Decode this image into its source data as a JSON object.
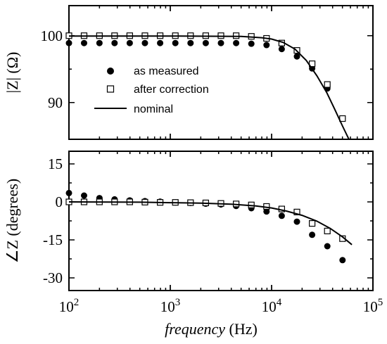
{
  "chart_data": [
    {
      "type": "scatter",
      "panel": "magnitude",
      "ylabel": "|Z| (Ω)",
      "xlabel": "",
      "xscale": "log",
      "xlim": [
        100,
        100000
      ],
      "ylim": [
        84.5,
        104.5
      ],
      "yticks": [
        90,
        100
      ],
      "ytick_labels": [
        "90",
        "100"
      ],
      "grid": false,
      "legend_position": "center-left",
      "series": [
        {
          "name": "as measured",
          "marker": "filled-circle",
          "x": [
            100,
            141,
            200,
            282,
            398,
            562,
            794,
            1122,
            1585,
            2239,
            3162,
            4467,
            6310,
            8913,
            12589,
            17783,
            25119,
            35481,
            50119
          ],
          "y": [
            98.9,
            98.9,
            98.9,
            98.9,
            98.9,
            98.9,
            98.9,
            98.9,
            98.9,
            98.9,
            98.9,
            98.9,
            98.8,
            98.6,
            98.0,
            96.9,
            95.1,
            92.1,
            87.6
          ]
        },
        {
          "name": "after correction",
          "marker": "open-square",
          "x": [
            100,
            141,
            200,
            282,
            398,
            562,
            794,
            1122,
            1585,
            2239,
            3162,
            4467,
            6310,
            8913,
            12589,
            17783,
            25119,
            35481,
            50119
          ],
          "y": [
            100.0,
            100.0,
            100.0,
            100.0,
            100.0,
            100.0,
            100.0,
            100.0,
            100.0,
            100.0,
            100.0,
            100.0,
            99.9,
            99.6,
            98.9,
            97.8,
            95.8,
            92.7,
            87.6
          ]
        },
        {
          "name": "nominal",
          "marker": "line",
          "x": [
            100,
            1000,
            5000,
            8000,
            10000,
            13000,
            17000,
            22000,
            28000,
            35000,
            42000,
            50000,
            58000
          ],
          "y": [
            99.95,
            99.95,
            99.9,
            99.7,
            99.5,
            99.0,
            98.0,
            96.3,
            94.0,
            91.5,
            89.0,
            86.5,
            84.5
          ]
        }
      ]
    },
    {
      "type": "scatter",
      "panel": "phase",
      "ylabel": "∠Z (degrees)",
      "xlabel": "frequency (Hz)",
      "xscale": "log",
      "xlim": [
        100,
        100000
      ],
      "ylim": [
        -35,
        20
      ],
      "yticks": [
        -30,
        -15,
        0,
        15
      ],
      "ytick_labels": [
        "-30",
        "-15",
        "0",
        "15"
      ],
      "xticks": [
        100,
        1000,
        10000,
        100000
      ],
      "xtick_labels": [
        [
          "10",
          "2"
        ],
        [
          "10",
          "3"
        ],
        [
          "10",
          "4"
        ],
        [
          "10",
          "5"
        ]
      ],
      "grid": false,
      "series": [
        {
          "name": "as measured",
          "marker": "filled-circle",
          "x": [
            100,
            141,
            200,
            282,
            398,
            562,
            794,
            1122,
            1585,
            2239,
            3162,
            4467,
            6310,
            8913,
            12589,
            17783,
            25119,
            35481,
            50119
          ],
          "y": [
            3.5,
            2.5,
            1.5,
            1.0,
            0.6,
            0.3,
            0.1,
            -0.2,
            -0.4,
            -0.7,
            -1.0,
            -1.6,
            -2.5,
            -3.8,
            -5.5,
            -7.8,
            -13.0,
            -17.5,
            -23.0
          ]
        },
        {
          "name": "after correction",
          "marker": "open-square",
          "x": [
            100,
            141,
            200,
            282,
            398,
            562,
            794,
            1122,
            1585,
            2239,
            3162,
            4467,
            6310,
            8913,
            12589,
            17783,
            25119,
            35481,
            50119
          ],
          "y": [
            0.0,
            0.0,
            0.0,
            0.0,
            0.0,
            -0.1,
            -0.2,
            -0.2,
            -0.3,
            -0.4,
            -0.6,
            -0.8,
            -1.2,
            -1.8,
            -2.8,
            -4.0,
            -8.5,
            -11.5,
            -14.5
          ]
        },
        {
          "name": "nominal",
          "marker": "line",
          "x": [
            100,
            500,
            1000,
            2000,
            4000,
            7000,
            10000,
            14000,
            20000,
            28000,
            38000,
            50000,
            62000
          ],
          "y": [
            0.0,
            -0.1,
            -0.3,
            -0.5,
            -0.9,
            -1.6,
            -2.4,
            -3.6,
            -5.3,
            -7.6,
            -10.5,
            -13.8,
            -16.9
          ]
        }
      ]
    }
  ],
  "legend": {
    "items": [
      "as measured",
      "after correction",
      "nominal"
    ]
  },
  "colors": {
    "ink": "#000000",
    "background": "#ffffff"
  }
}
